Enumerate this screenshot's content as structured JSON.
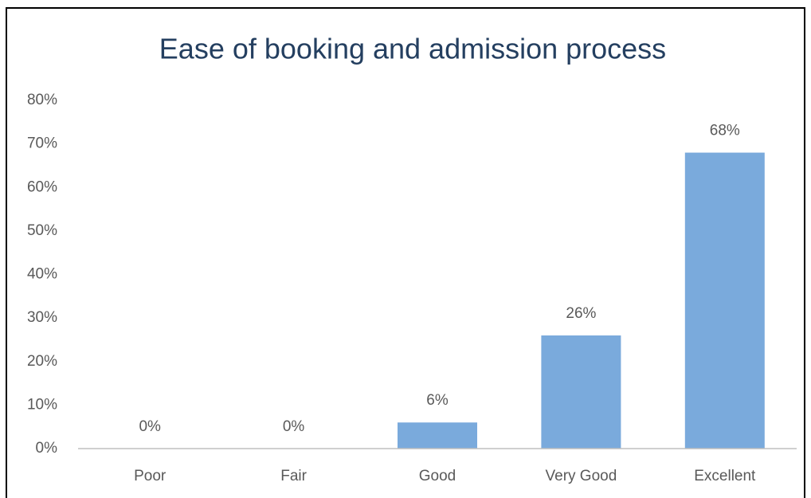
{
  "chart_data": {
    "type": "bar",
    "title": "Ease of booking and admission process",
    "categories": [
      "Poor",
      "Fair",
      "Good",
      "Very Good",
      "Excellent"
    ],
    "values": [
      0,
      0,
      6,
      26,
      68
    ],
    "value_labels": [
      "0%",
      "0%",
      "6%",
      "26%",
      "68%"
    ],
    "color": "#7aaadc",
    "ylim": [
      0,
      80
    ],
    "yticks": [
      {
        "value": 0,
        "label": "0%"
      },
      {
        "value": 10,
        "label": "10%"
      },
      {
        "value": 20,
        "label": "20%"
      },
      {
        "value": 30,
        "label": "30%"
      },
      {
        "value": 40,
        "label": "40%"
      },
      {
        "value": 50,
        "label": "50%"
      },
      {
        "value": 60,
        "label": "60%"
      },
      {
        "value": 70,
        "label": "70%"
      },
      {
        "value": 80,
        "label": "80%"
      }
    ],
    "grid": false
  }
}
